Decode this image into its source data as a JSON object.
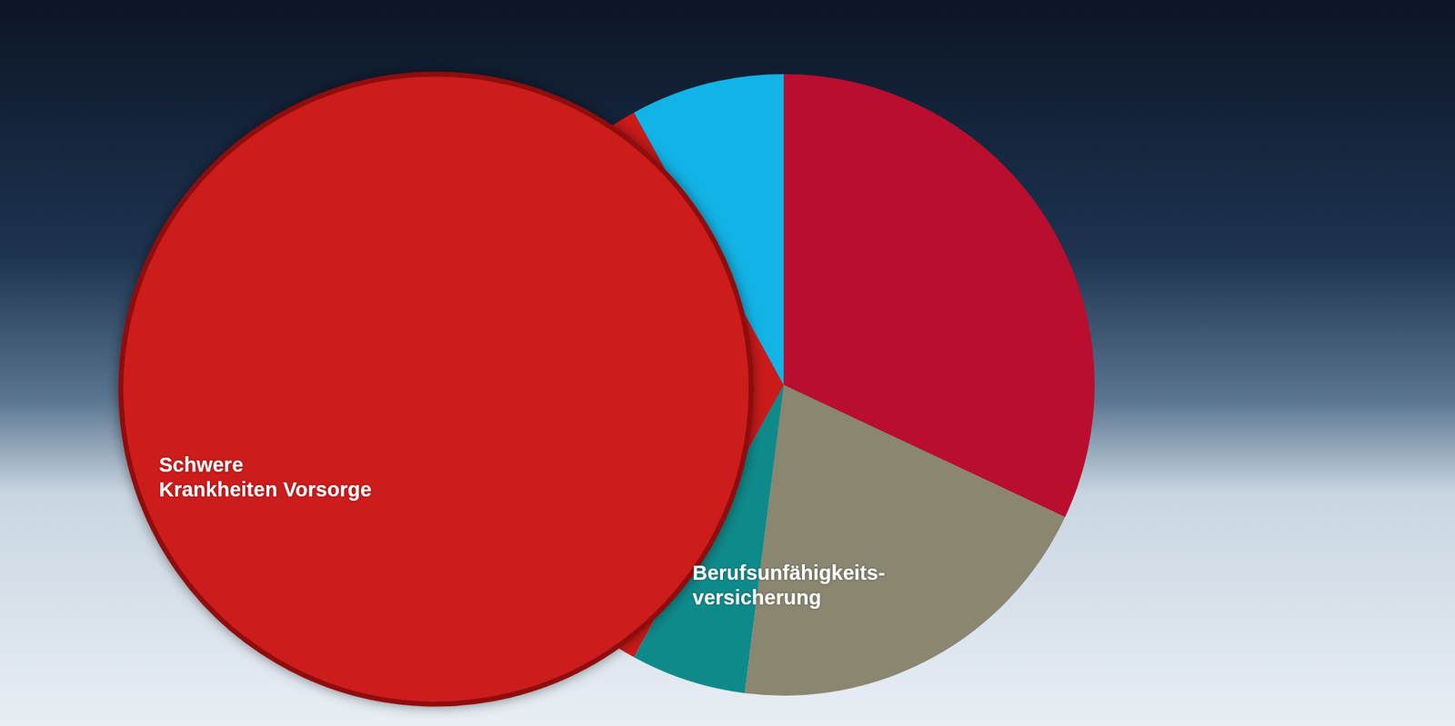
{
  "chart_data": {
    "type": "pie",
    "categories": [
      null,
      "Berufsunfähigkeits-versicherung",
      null,
      "Schwere Krankheiten Vorsorge",
      null
    ],
    "values": [
      32,
      20,
      6,
      34,
      8
    ],
    "colors": [
      "#b90e2e",
      "#8a8670",
      "#0f8a8a",
      "#cc1a1a",
      "#12b3e6"
    ]
  }
}
